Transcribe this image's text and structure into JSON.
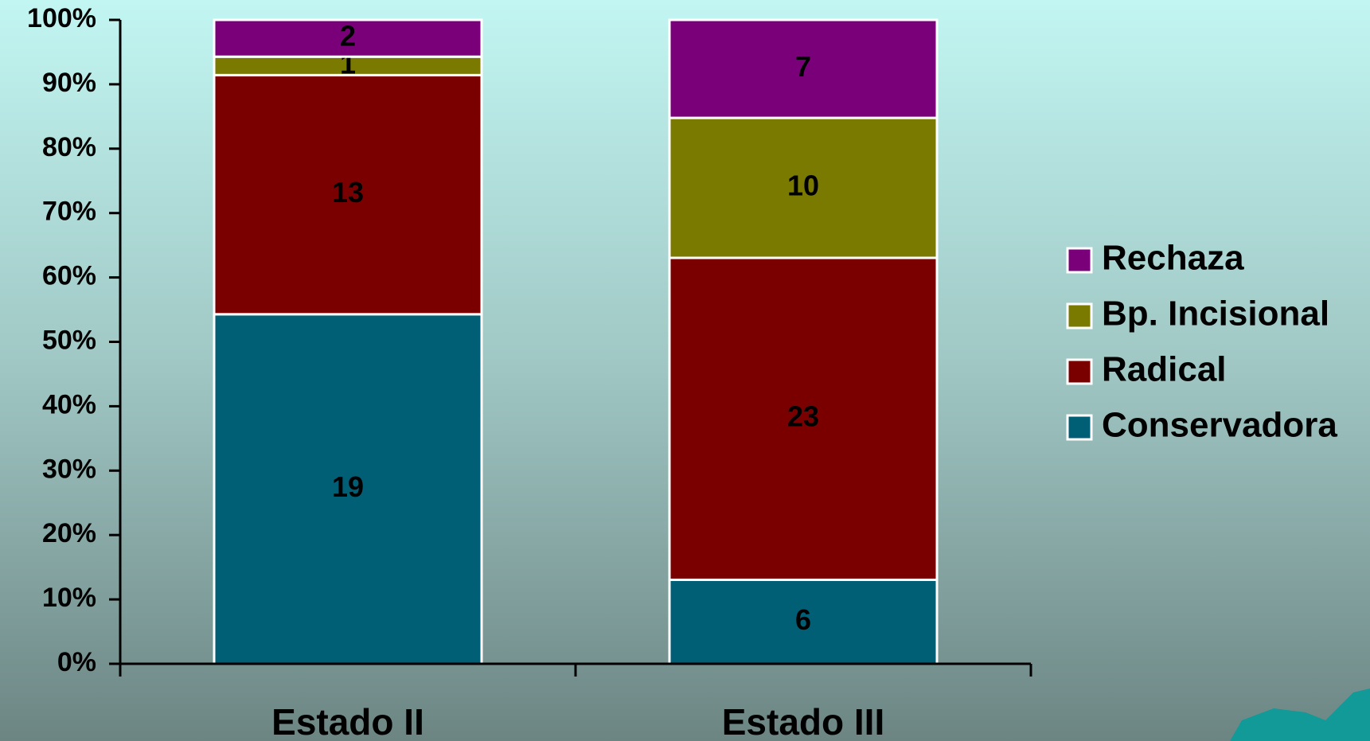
{
  "chart_data": {
    "type": "bar",
    "stacking": "percent",
    "categories": [
      "Estado II",
      "Estado III"
    ],
    "series": [
      {
        "name": "Conservadora",
        "color": "#005e75",
        "values": [
          19,
          6
        ]
      },
      {
        "name": "Radical",
        "color": "#7a0000",
        "values": [
          13,
          23
        ]
      },
      {
        "name": "Bp. Incisional",
        "color": "#7a7a00",
        "values": [
          1,
          10
        ]
      },
      {
        "name": "Rechaza",
        "color": "#7a007a",
        "values": [
          2,
          7
        ]
      }
    ],
    "ylim": [
      0,
      100
    ],
    "yticks": [
      {
        "value": 0,
        "label": "0%"
      },
      {
        "value": 10,
        "label": "10%"
      },
      {
        "value": 20,
        "label": "20%"
      },
      {
        "value": 30,
        "label": "30%"
      },
      {
        "value": 40,
        "label": "40%"
      },
      {
        "value": 50,
        "label": "50%"
      },
      {
        "value": 60,
        "label": "60%"
      },
      {
        "value": 70,
        "label": "70%"
      },
      {
        "value": 80,
        "label": "80%"
      },
      {
        "value": 90,
        "label": "90%"
      },
      {
        "value": 100,
        "label": "100%"
      }
    ],
    "legend": "right"
  }
}
